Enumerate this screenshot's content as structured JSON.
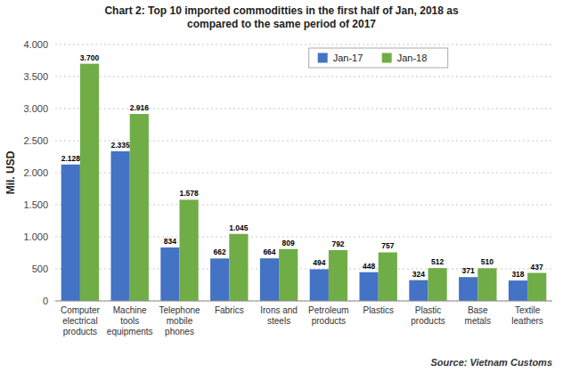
{
  "chart_data": {
    "type": "bar",
    "title": "Chart 2: Top 10 imported commoditties in the first half of Jan, 2018 as\ncompared to the same period of 2017",
    "y_label": "Mil. USD",
    "annotations": [
      "Source: Vietnam Customs"
    ],
    "categories": [
      "Computer\nelectrical\nproducts",
      "Machine\ntools\nequipments",
      "Telephone\nmobile\nphones",
      "Fabrics",
      "Irons and\nsteels",
      "Petroleum\nproducts",
      "Plastics",
      "Plastic\nproducts",
      "Base\nmetals",
      "Textile\nleathers"
    ],
    "series": [
      {
        "name": "Jan-17",
        "color": "#4472c4",
        "values": [
          2128,
          2335,
          834,
          662,
          664,
          494,
          448,
          324,
          371,
          318
        ],
        "value_labels": [
          "2.128",
          "2.335",
          "834",
          "662",
          "664",
          "494",
          "448",
          "324",
          "371",
          "318"
        ]
      },
      {
        "name": "Jan-18",
        "color": "#70ad47",
        "values": [
          3700,
          2916,
          1578,
          1045,
          809,
          792,
          757,
          512,
          510,
          437
        ],
        "value_labels": [
          "3.700",
          "2.916",
          "1.578",
          "1.045",
          "809",
          "792",
          "757",
          "512",
          "510",
          "437"
        ]
      }
    ],
    "ylim": [
      0,
      4000
    ],
    "yticks": [
      0,
      500,
      {
        "value": 1000,
        "label": "1.000"
      },
      {
        "value": 1500,
        "label": "1.500"
      },
      {
        "value": 2000,
        "label": "2.000"
      },
      {
        "value": 2500,
        "label": "2.500"
      },
      {
        "value": 3000,
        "label": "3.000"
      },
      {
        "value": 3500,
        "label": "3.500"
      },
      {
        "value": 4000,
        "label": "4.000"
      }
    ],
    "grid": true,
    "legend": "top",
    "data_labels": true
  }
}
